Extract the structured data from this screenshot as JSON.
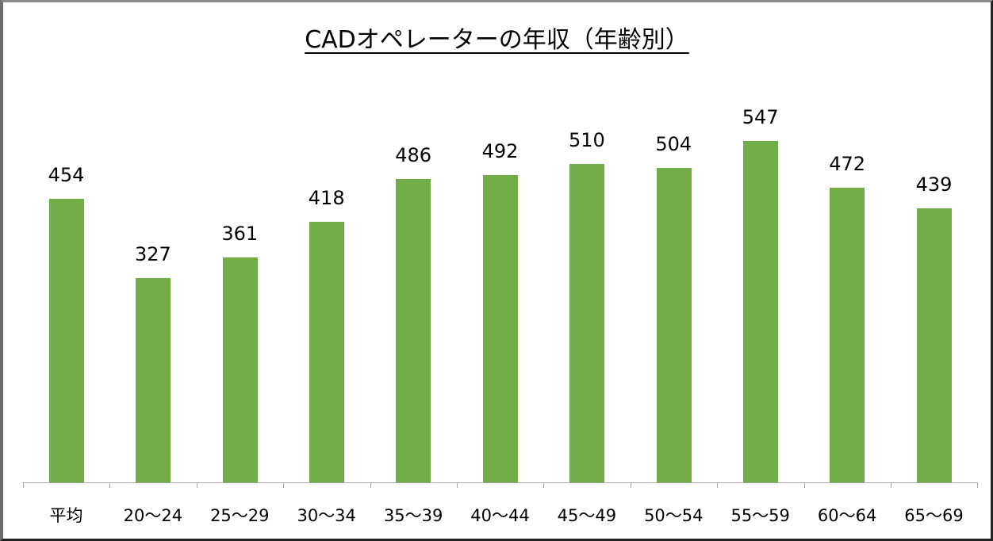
{
  "chart_data": {
    "type": "bar",
    "title": "CADオペレーターの年収（年齢別）",
    "xlabel": "",
    "ylabel": "",
    "categories": [
      "平均",
      "20〜24",
      "25〜29",
      "30〜34",
      "35〜39",
      "40〜44",
      "45〜49",
      "50〜54",
      "55〜59",
      "60〜64",
      "65〜69"
    ],
    "values": [
      454,
      327,
      361,
      418,
      486,
      492,
      510,
      504,
      547,
      472,
      439
    ],
    "data_labels": [
      "454",
      "327",
      "361",
      "418",
      "486",
      "492",
      "510",
      "504",
      "547",
      "472",
      "439"
    ],
    "ylim": [
      0,
      547
    ],
    "grid": false,
    "legend": null,
    "bar_color": "#70ad47"
  },
  "style": {
    "bar_color": "#70ad47",
    "axis_color": "#a6a6a6",
    "text_color": "#000000"
  }
}
